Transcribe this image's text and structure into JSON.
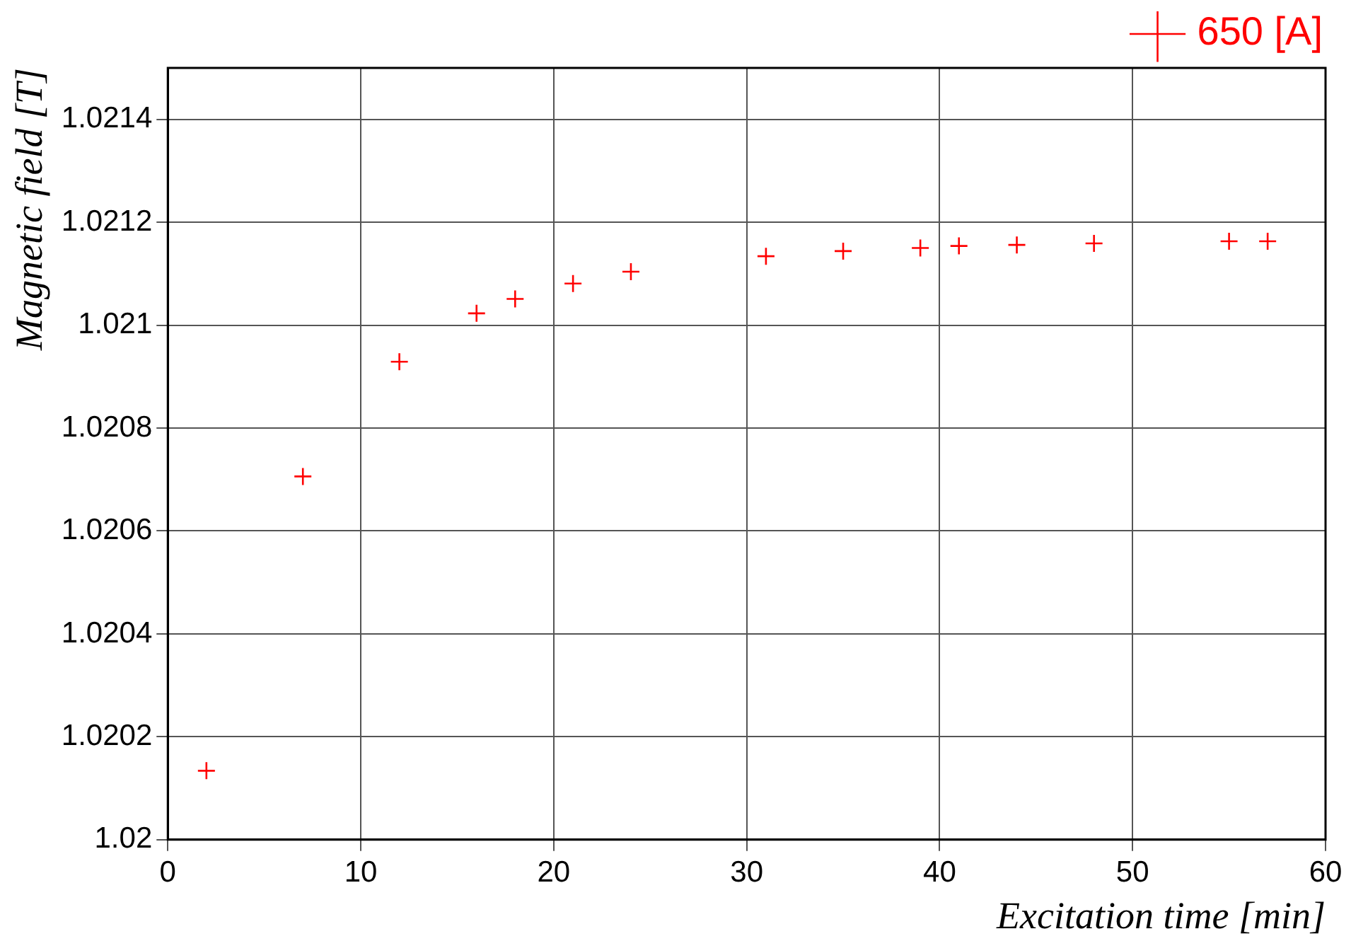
{
  "chart_data": {
    "type": "scatter",
    "xlabel": "Excitation time [min]",
    "ylabel": "Magnetic field [T]",
    "x": [
      2,
      7,
      12,
      16,
      18,
      21,
      24,
      31,
      35,
      39,
      41,
      44,
      48,
      55,
      57
    ],
    "series": [
      {
        "name": "650 [A]",
        "color": "#ff0000",
        "values": [
          1.020134,
          1.020706,
          1.020929,
          1.021023,
          1.021051,
          1.021081,
          1.021104,
          1.021134,
          1.021144,
          1.02115,
          1.021154,
          1.021156,
          1.021159,
          1.021163,
          1.021163
        ]
      }
    ],
    "xlim": [
      0,
      60
    ],
    "xticks": [
      0,
      10,
      20,
      30,
      40,
      50,
      60
    ],
    "ylim": [
      1.02,
      1.0215
    ],
    "yticks": [
      1.02,
      1.0202,
      1.0204,
      1.0206,
      1.0208,
      1.021,
      1.0212,
      1.0214
    ],
    "grid": true,
    "legend": "top right",
    "marker": "cross"
  }
}
